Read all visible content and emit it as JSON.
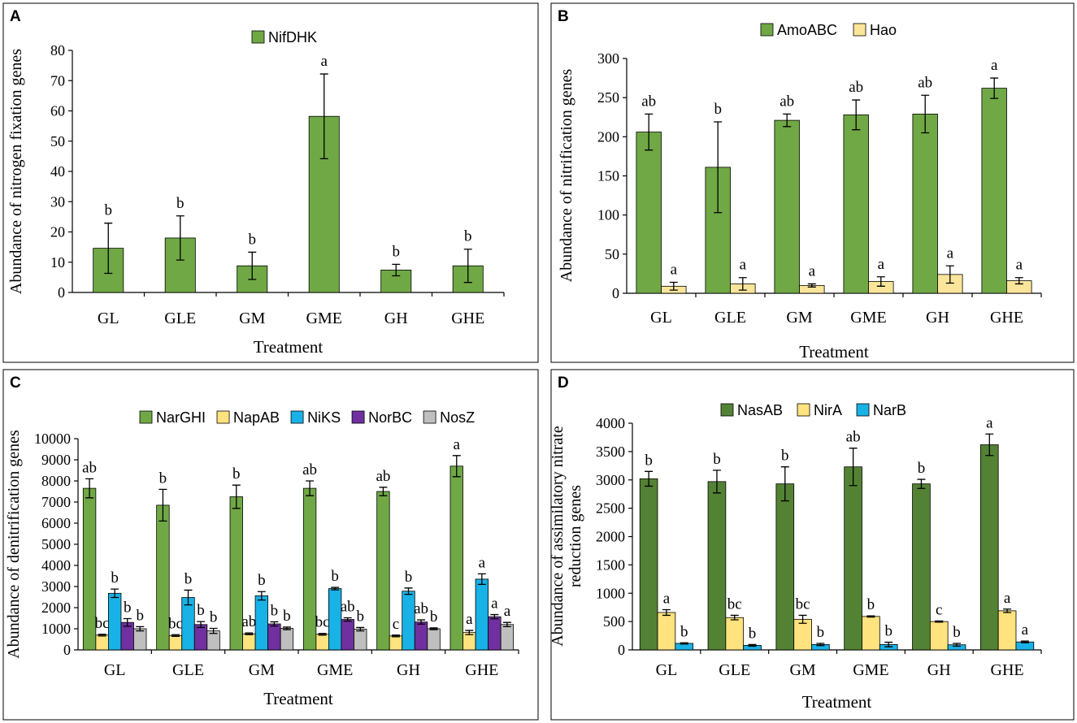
{
  "categories": [
    "GL",
    "GLE",
    "GM",
    "GME",
    "GH",
    "GHE"
  ],
  "chart_data": [
    {
      "panel": "A",
      "type": "bar",
      "xlabel": "Treatment",
      "ylabel": "Abundance of nitrogen fixation genes",
      "ylim": [
        0,
        80
      ],
      "yticks": [
        0,
        10,
        20,
        30,
        40,
        50,
        60,
        70,
        80
      ],
      "series": [
        {
          "name": "NifDHK",
          "color": "#70a845",
          "values": [
            14.6,
            18.0,
            8.8,
            58.2,
            7.4,
            8.8
          ],
          "errors": [
            8.3,
            7.3,
            4.5,
            14.0,
            1.9,
            5.5
          ],
          "labels": [
            "b",
            "b",
            "b",
            "a",
            "b",
            "b"
          ]
        }
      ]
    },
    {
      "panel": "B",
      "type": "bar",
      "xlabel": "Treatment",
      "ylabel": "Abundance of nitrification  genes",
      "ylim": [
        0,
        300
      ],
      "yticks": [
        0,
        50,
        100,
        150,
        200,
        250,
        300
      ],
      "series": [
        {
          "name": "AmoABC",
          "color": "#70a845",
          "values": [
            206,
            161,
            221,
            228,
            229,
            262
          ],
          "errors": [
            23,
            58,
            8,
            19,
            24,
            13
          ],
          "labels": [
            "ab",
            "b",
            "ab",
            "ab",
            "ab",
            "a"
          ]
        },
        {
          "name": "Hao",
          "color": "#fbe59a",
          "values": [
            9,
            12,
            10,
            15,
            24,
            16
          ],
          "errors": [
            5,
            8,
            2,
            6,
            11,
            4
          ],
          "labels": [
            "a",
            "a",
            "a",
            "a",
            "a",
            "a"
          ]
        }
      ]
    },
    {
      "panel": "C",
      "type": "bar",
      "xlabel": "Treatment",
      "ylabel": "Abundance of denitrification  genes",
      "ylim": [
        0,
        10000
      ],
      "yticks": [
        0,
        1000,
        2000,
        3000,
        4000,
        5000,
        6000,
        7000,
        8000,
        9000,
        10000
      ],
      "series": [
        {
          "name": "NarGHI",
          "color": "#70a845",
          "values": [
            7650,
            6850,
            7250,
            7650,
            7500,
            8700
          ],
          "errors": [
            450,
            750,
            550,
            350,
            200,
            500
          ],
          "labels": [
            "ab",
            "b",
            "b",
            "ab",
            "ab",
            "a"
          ]
        },
        {
          "name": "NapAB",
          "color": "#ffe37e",
          "values": [
            700,
            680,
            760,
            740,
            660,
            820
          ],
          "errors": [
            40,
            40,
            40,
            40,
            40,
            100
          ],
          "labels": [
            "bc",
            "bc",
            "ab",
            "bc",
            "c",
            "a"
          ]
        },
        {
          "name": "NiKS",
          "color": "#18b2e6",
          "values": [
            2680,
            2480,
            2560,
            2900,
            2780,
            3350
          ],
          "errors": [
            200,
            350,
            200,
            60,
            150,
            250
          ],
          "labels": [
            "b",
            "b",
            "b",
            "b",
            "b",
            "a"
          ]
        },
        {
          "name": "NorBC",
          "color": "#7030a0",
          "values": [
            1300,
            1200,
            1230,
            1440,
            1320,
            1570
          ],
          "errors": [
            180,
            140,
            100,
            80,
            100,
            100
          ],
          "labels": [
            "b",
            "b",
            "b",
            "ab",
            "ab",
            "a"
          ]
        },
        {
          "name": "NosZ",
          "color": "#bfbfbf",
          "values": [
            1000,
            900,
            1020,
            980,
            1000,
            1200
          ],
          "errors": [
            100,
            120,
            60,
            80,
            40,
            100
          ],
          "labels": [
            "b",
            "b",
            "b",
            "b",
            "b",
            "a"
          ]
        }
      ]
    },
    {
      "panel": "D",
      "type": "bar",
      "xlabel": "Treatment",
      "ylabel": "Abundance of assimilatory  nitrate reduction genes",
      "ylabel_lines": [
        "Abundance of assimilatory  nitrate",
        "reduction genes"
      ],
      "ylim": [
        0,
        4000
      ],
      "yticks": [
        0,
        500,
        1000,
        1500,
        2000,
        2500,
        3000,
        3500,
        4000
      ],
      "series": [
        {
          "name": "NasAB",
          "color": "#548235",
          "values": [
            3020,
            2970,
            2930,
            3230,
            2930,
            3620
          ],
          "errors": [
            130,
            200,
            300,
            330,
            80,
            190
          ],
          "labels": [
            "b",
            "b",
            "b",
            "ab",
            "b",
            "a"
          ]
        },
        {
          "name": "NirA",
          "color": "#ffe37e",
          "values": [
            660,
            570,
            540,
            590,
            500,
            690
          ],
          "errors": [
            50,
            40,
            70,
            10,
            10,
            30
          ],
          "labels": [
            "a",
            "bc",
            "bc",
            "b",
            "c",
            "a"
          ]
        },
        {
          "name": "NarB",
          "color": "#18b2e6",
          "values": [
            115,
            80,
            95,
            95,
            90,
            140
          ],
          "errors": [
            10,
            15,
            20,
            40,
            25,
            15
          ],
          "labels": [
            "b",
            "b",
            "b",
            "b",
            "b",
            "a"
          ]
        }
      ]
    }
  ]
}
